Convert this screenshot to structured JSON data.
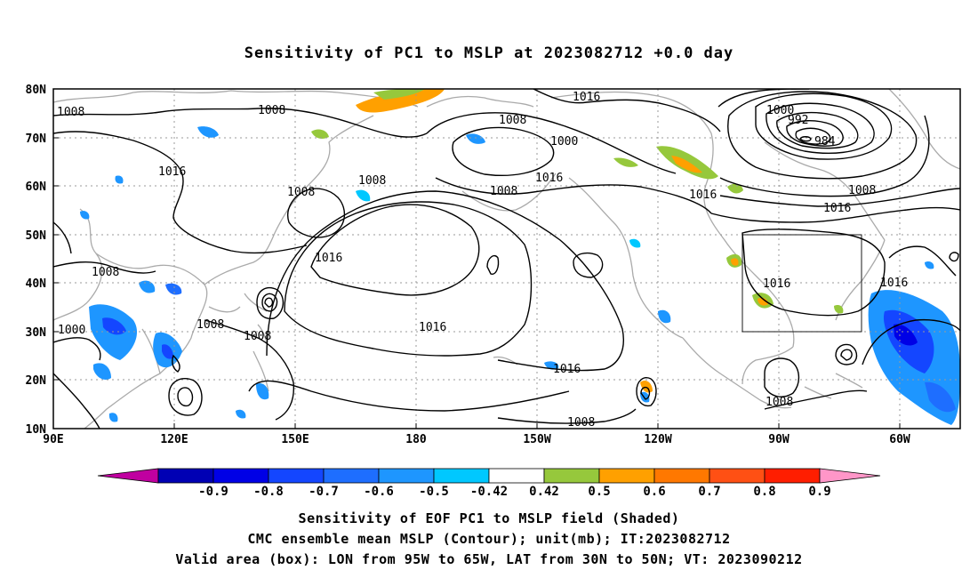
{
  "title": "Sensitivity of PC1 to MSLP at 2023082712 +0.0 day",
  "map": {
    "lat_labels": [
      "80N",
      "70N",
      "60N",
      "50N",
      "40N",
      "30N",
      "20N",
      "10N"
    ],
    "lon_labels": [
      "90E",
      "120E",
      "150E",
      "180",
      "150W",
      "120W",
      "90W",
      "60W"
    ],
    "contour_labels": [
      {
        "text": "1008",
        "region": "west-siberia"
      },
      {
        "text": "1008",
        "region": "central-siberia"
      },
      {
        "text": "1016",
        "region": "mongolia"
      },
      {
        "text": "1008",
        "region": "east-siberia"
      },
      {
        "text": "1008",
        "region": "kamchatka"
      },
      {
        "text": "1008",
        "region": "bering-sea"
      },
      {
        "text": "1000",
        "region": "bering-sea-low"
      },
      {
        "text": "1016",
        "region": "arctic-pacific"
      },
      {
        "text": "1016",
        "region": "gulf-of-alaska"
      },
      {
        "text": "1008",
        "region": "alaska"
      },
      {
        "text": "1000",
        "region": "greenland-low"
      },
      {
        "text": "992",
        "region": "greenland-low"
      },
      {
        "text": "984",
        "region": "greenland-low-center"
      },
      {
        "text": "1008",
        "region": "labrador-sea"
      },
      {
        "text": "1016",
        "region": "hudson-bay"
      },
      {
        "text": "1016",
        "region": "north-atlantic"
      },
      {
        "text": "1016",
        "region": "north-pacific-high"
      },
      {
        "text": "1016",
        "region": "central-pacific"
      },
      {
        "text": "1016",
        "region": "eastern-pacific"
      },
      {
        "text": "1008",
        "region": "tropical-pacific"
      },
      {
        "text": "1008",
        "region": "china"
      },
      {
        "text": "1000",
        "region": "india"
      },
      {
        "text": "1008",
        "region": "east-china-sea"
      },
      {
        "text": "1008",
        "region": "western-pacific"
      },
      {
        "text": "1016",
        "region": "eastern-us"
      },
      {
        "text": "1008",
        "region": "caribbean"
      },
      {
        "text": "1016",
        "region": "western-atlantic"
      }
    ],
    "valid_box": {
      "lon_from": "95W",
      "lon_to": "65W",
      "lat_from": "30N",
      "lat_to": "50N"
    }
  },
  "colorbar": {
    "labels": [
      "-0.9",
      "-0.8",
      "-0.7",
      "-0.6",
      "-0.5",
      "-0.42",
      "0.42",
      "0.5",
      "0.6",
      "0.7",
      "0.8",
      "0.9"
    ],
    "colors": [
      "#c000a0",
      "#0000b4",
      "#0000e6",
      "#1446ff",
      "#1e6eff",
      "#1e96ff",
      "#00c8ff",
      "#ffffff",
      "#96c83c",
      "#ffa000",
      "#ff7800",
      "#ff5014",
      "#ff1e00",
      "#ff96c8"
    ]
  },
  "captions": {
    "line1": "Sensitivity of EOF PC1 to MSLP field (Shaded)",
    "line2": "CMC ensemble mean MSLP (Contour); unit(mb); IT:2023082712",
    "line3": "Valid area (box): LON from 95W to 65W, LAT from 30N to 50N; VT: 2023090212"
  }
}
